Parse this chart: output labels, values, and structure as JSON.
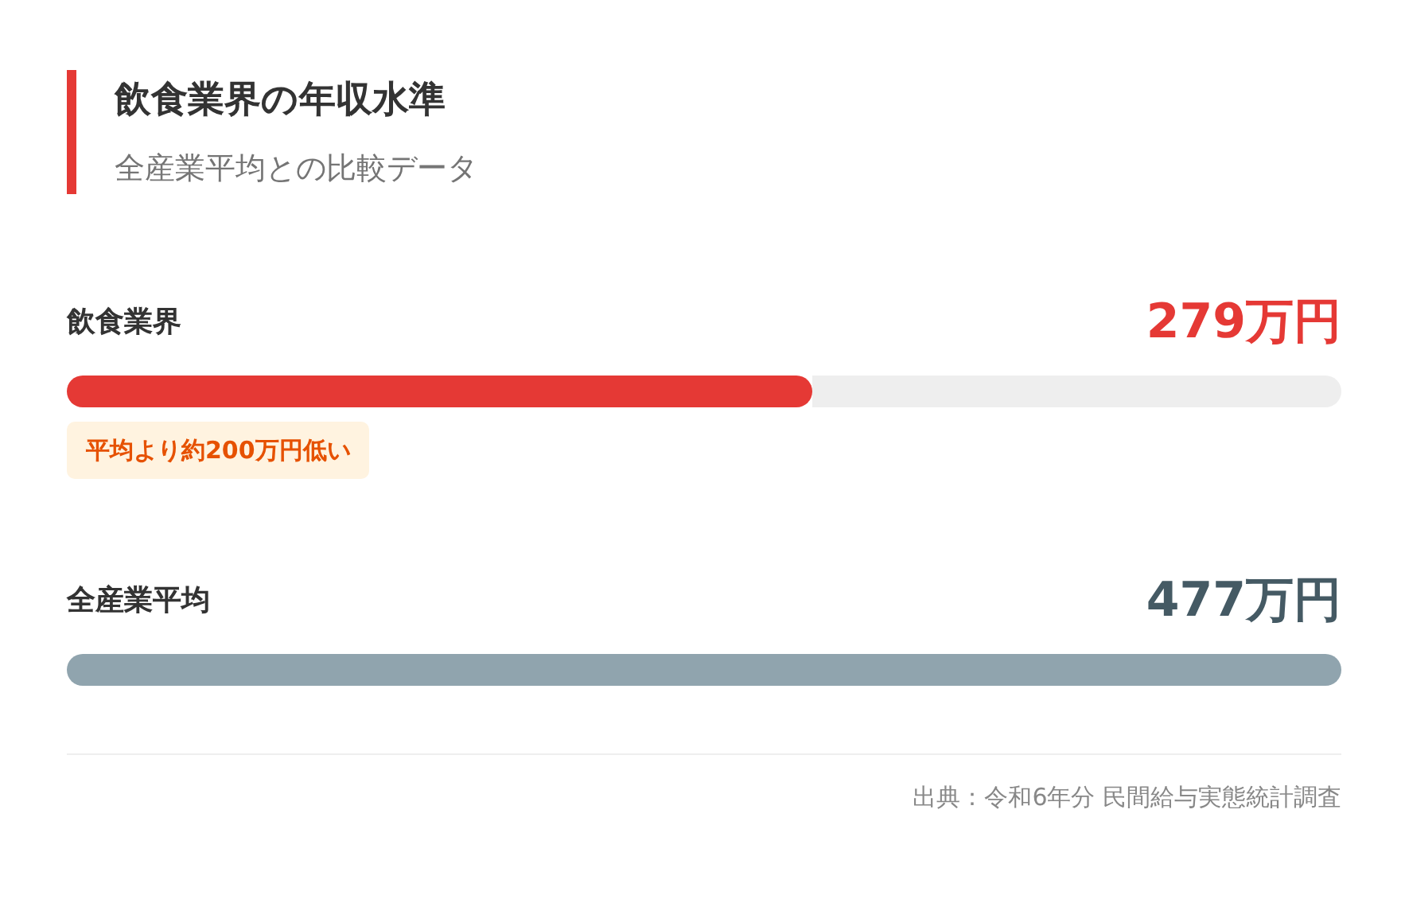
{
  "chart_data": {
    "type": "bar",
    "orientation": "horizontal",
    "title": "飲食業界の年収水準",
    "subtitle": "全産業平均との比較データ",
    "categories": [
      "飲食業界",
      "全産業平均"
    ],
    "values": [
      279,
      477
    ],
    "colors": [
      "#e53935",
      "#90a4ae"
    ],
    "value_labels": [
      "279万円",
      "477万円"
    ],
    "annotations": [
      "平均より約200万円低い",
      "出典：令和6年分 民間給与実態統計調査"
    ]
  }
}
